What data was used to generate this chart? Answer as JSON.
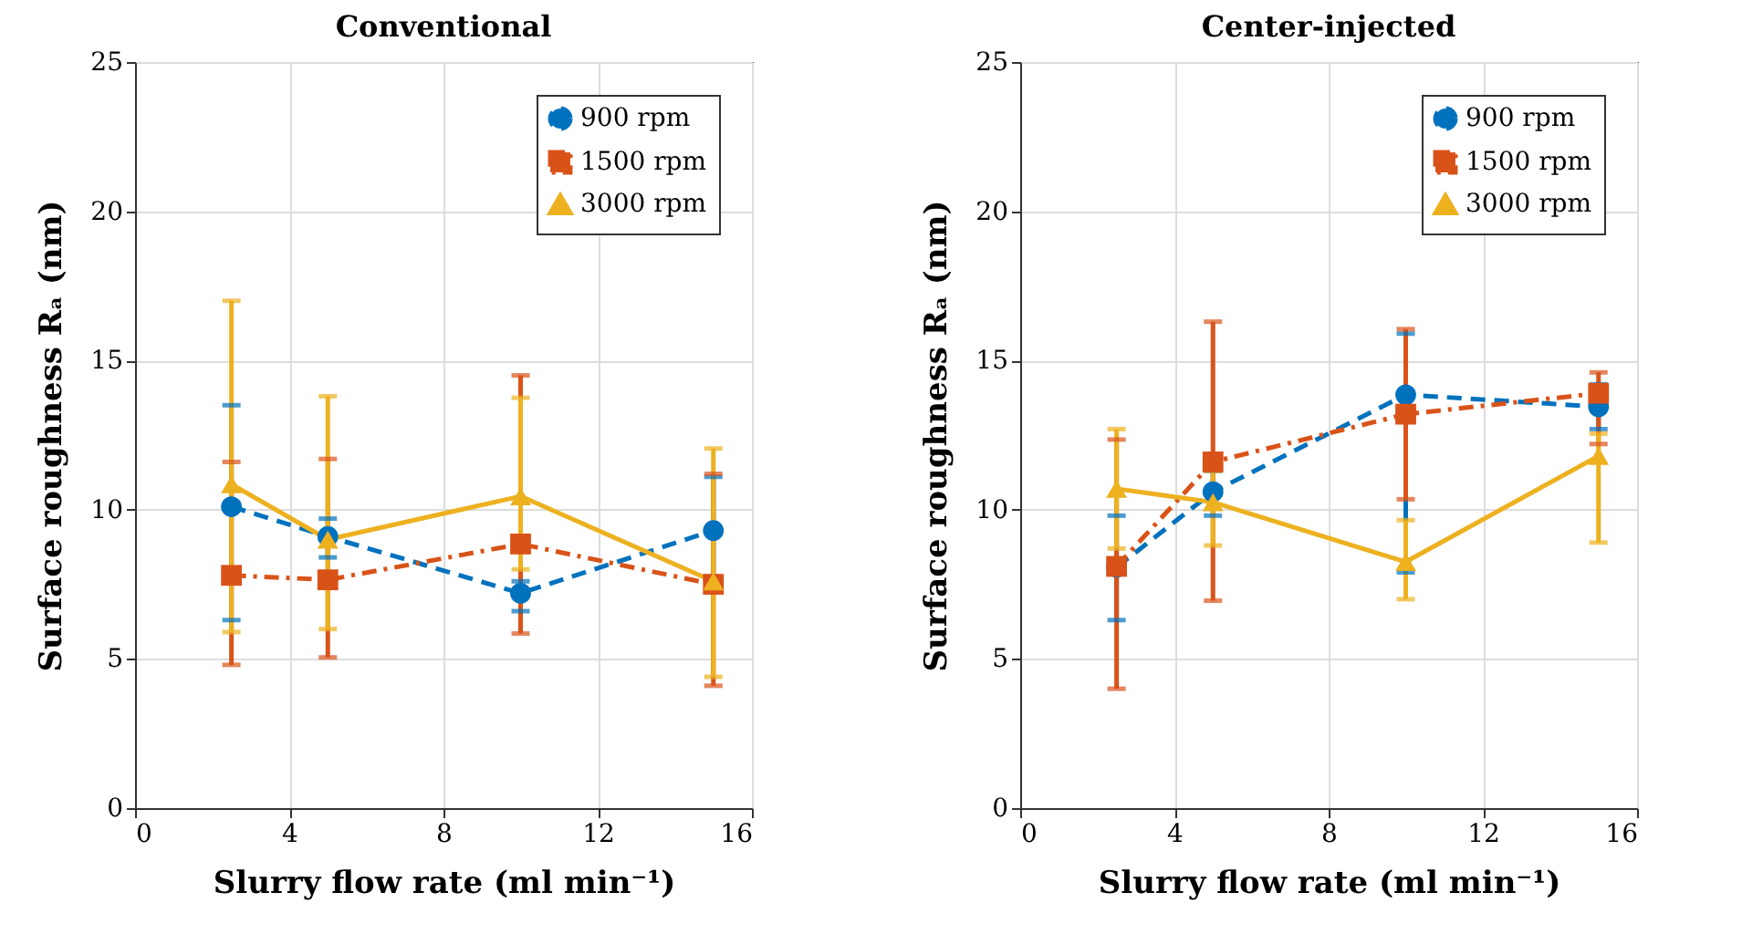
{
  "chart_data": [
    {
      "type": "line",
      "title": "Conventional",
      "xlabel": "Slurry flow rate (ml min⁻¹)",
      "ylabel": "Surface roughness Rₐ (nm)",
      "x": [
        2.5,
        5,
        10,
        15
      ],
      "xlim": [
        0,
        16
      ],
      "xticks": [
        0,
        4,
        8,
        12,
        16
      ],
      "ylim": [
        0,
        25
      ],
      "yticks": [
        0,
        5,
        10,
        15,
        20,
        25
      ],
      "grid": true,
      "legend": "top right",
      "series": [
        {
          "name": "900 rpm",
          "color": "#0072bd",
          "marker": "circle",
          "line_style": "dashed",
          "values": [
            10.1,
            9.1,
            7.2,
            9.3
          ],
          "errors": [
            [
              6.3,
              13.5
            ],
            [
              8.4,
              9.7
            ],
            [
              6.6,
              7.6
            ],
            [
              7.3,
              11.1
            ]
          ]
        },
        {
          "name": "1500 rpm",
          "color": "#d95319",
          "marker": "square",
          "line_style": "dashdot",
          "values": [
            7.8,
            7.65,
            8.85,
            7.5
          ],
          "errors": [
            [
              4.8,
              11.6
            ],
            [
              5.05,
              11.7
            ],
            [
              5.85,
              14.5
            ],
            [
              4.1,
              11.2
            ]
          ]
        },
        {
          "name": "3000 rpm",
          "color": "#edb120",
          "marker": "triangle",
          "line_style": "solid",
          "values": [
            10.85,
            9.0,
            10.45,
            7.6
          ],
          "errors": [
            [
              5.9,
              17.0
            ],
            [
              6.0,
              13.8
            ],
            [
              8.0,
              13.75
            ],
            [
              4.4,
              12.05
            ]
          ]
        }
      ]
    },
    {
      "type": "line",
      "title": "Center-injected",
      "xlabel": "Slurry flow rate (ml min⁻¹)",
      "ylabel": "Surface roughness Rₐ (nm)",
      "x": [
        2.5,
        5,
        10,
        15
      ],
      "xlim": [
        0,
        16
      ],
      "xticks": [
        0,
        4,
        8,
        12,
        16
      ],
      "ylim": [
        0,
        25
      ],
      "yticks": [
        0,
        5,
        10,
        15,
        20,
        25
      ],
      "grid": true,
      "legend": "top right",
      "series": [
        {
          "name": "900 rpm",
          "color": "#0072bd",
          "marker": "circle",
          "line_style": "dashed",
          "values": [
            8.07,
            10.6,
            13.85,
            13.45
          ],
          "errors": [
            [
              6.3,
              9.8
            ],
            [
              9.8,
              11.3
            ],
            [
              7.9,
              15.9
            ],
            [
              12.7,
              14.2
            ]
          ]
        },
        {
          "name": "1500 rpm",
          "color": "#d95319",
          "marker": "square",
          "line_style": "dashdot",
          "values": [
            8.1,
            11.6,
            13.2,
            13.9
          ],
          "errors": [
            [
              4.0,
              12.35
            ],
            [
              6.95,
              16.3
            ],
            [
              10.35,
              16.05
            ],
            [
              12.2,
              14.6
            ]
          ]
        },
        {
          "name": "3000 rpm",
          "color": "#edb120",
          "marker": "triangle",
          "line_style": "solid",
          "values": [
            10.7,
            10.25,
            8.25,
            11.8
          ],
          "errors": [
            [
              8.7,
              12.7
            ],
            [
              8.8,
              11.3
            ],
            [
              7.0,
              9.65
            ],
            [
              8.9,
              12.55
            ]
          ]
        }
      ]
    }
  ]
}
